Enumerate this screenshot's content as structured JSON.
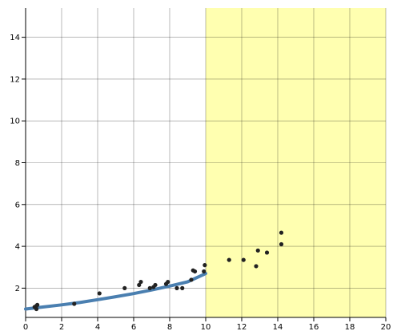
{
  "chart_data": {
    "type": "scatter",
    "title": "",
    "xlabel": "",
    "ylabel": "",
    "xlim": [
      0,
      20
    ],
    "ylim": [
      0.6,
      15.4
    ],
    "grid": true,
    "x_ticks": [
      0,
      2,
      4,
      6,
      8,
      10,
      12,
      14,
      16,
      18,
      20
    ],
    "y_ticks": [
      2,
      4,
      6,
      8,
      10,
      12,
      14
    ],
    "x_tick_labels": [
      "0",
      "2",
      "4",
      "6",
      "8",
      "10",
      "12",
      "14",
      "16",
      "18",
      "20"
    ],
    "y_tick_labels": [
      "2",
      "4",
      "6",
      "8",
      "10",
      "12",
      "14"
    ],
    "highlight_region": {
      "x": [
        10,
        20
      ],
      "color": "#ffffb0"
    },
    "colors": {
      "points": "#222222",
      "fit_line": "#4a7fb0",
      "highlight": "#ffffb0"
    },
    "series": [
      {
        "type": "scatter",
        "points": [
          [
            0.5,
            1.1
          ],
          [
            0.6,
            1.0
          ],
          [
            0.6,
            1.15
          ],
          [
            0.65,
            1.2
          ],
          [
            2.7,
            1.25
          ],
          [
            4.1,
            1.75
          ],
          [
            5.5,
            2.0
          ],
          [
            6.3,
            2.15
          ],
          [
            6.4,
            2.3
          ],
          [
            6.9,
            2.0
          ],
          [
            7.1,
            2.05
          ],
          [
            7.2,
            2.15
          ],
          [
            7.8,
            2.2
          ],
          [
            7.9,
            2.3
          ],
          [
            8.4,
            2.0
          ],
          [
            8.7,
            2.0
          ],
          [
            9.2,
            2.4
          ],
          [
            9.3,
            2.85
          ],
          [
            9.4,
            2.8
          ],
          [
            9.9,
            2.8
          ],
          [
            9.95,
            3.1
          ],
          [
            11.3,
            3.35
          ],
          [
            12.1,
            3.35
          ],
          [
            12.8,
            3.05
          ],
          [
            12.9,
            3.8
          ],
          [
            13.4,
            3.7
          ],
          [
            14.2,
            4.1
          ],
          [
            14.2,
            4.65
          ]
        ]
      },
      {
        "type": "line",
        "fit": "exponential",
        "x": [
          0,
          1,
          2,
          3,
          4,
          5,
          6,
          7,
          8,
          9,
          10
        ],
        "y": [
          1.0,
          1.1,
          1.2,
          1.31,
          1.45,
          1.59,
          1.74,
          1.91,
          2.1,
          2.3,
          2.7
        ]
      }
    ]
  }
}
